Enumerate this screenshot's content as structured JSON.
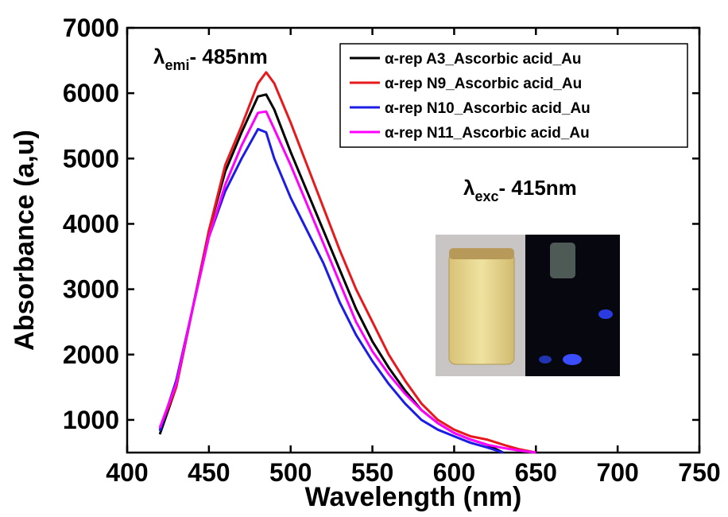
{
  "chart_data": {
    "type": "line",
    "x_label": "Wavelength (nm)",
    "y_label": "Absorbance (a,u)",
    "x": [
      420,
      430,
      440,
      450,
      460,
      470,
      480,
      485,
      490,
      500,
      510,
      520,
      530,
      540,
      550,
      560,
      570,
      580,
      590,
      600,
      610,
      620,
      630,
      640,
      650
    ],
    "series": [
      {
        "name": "α-rep A3_Ascorbic acid_Au",
        "color": "#000000",
        "values": [
          780,
          1500,
          2700,
          3900,
          4800,
          5400,
          5950,
          5980,
          5750,
          5100,
          4500,
          3900,
          3300,
          2700,
          2200,
          1800,
          1450,
          1150,
          950,
          800,
          700,
          620,
          500,
          null,
          null
        ]
      },
      {
        "name": "α-rep N9_Ascorbic acid_Au",
        "color": "#e8191c",
        "values": [
          850,
          1500,
          2700,
          3900,
          4900,
          5500,
          6150,
          6320,
          6150,
          5550,
          4900,
          4250,
          3600,
          3000,
          2500,
          2000,
          1600,
          1250,
          1000,
          850,
          750,
          700,
          620,
          550,
          500
        ]
      },
      {
        "name": "α-rep N10_Ascorbic acid_Au",
        "color": "#1c1ce6",
        "values": [
          830,
          1600,
          2700,
          3800,
          4500,
          5000,
          5450,
          5400,
          5000,
          4400,
          3900,
          3400,
          2800,
          2300,
          1900,
          1550,
          1250,
          1000,
          850,
          750,
          650,
          580,
          500,
          null,
          null
        ]
      },
      {
        "name": "α-rep N11_Ascorbic acid_Au",
        "color": "#ff00ff",
        "values": [
          880,
          1550,
          2700,
          3800,
          4600,
          5200,
          5700,
          5720,
          5450,
          4900,
          4300,
          3700,
          3100,
          2500,
          2050,
          1700,
          1400,
          1150,
          950,
          800,
          700,
          620,
          570,
          530,
          500
        ]
      }
    ],
    "xlim": [
      400,
      750
    ],
    "ylim": [
      500,
      7000
    ],
    "xticks": [
      400,
      450,
      500,
      550,
      600,
      650,
      700,
      750
    ],
    "yticks": [
      1000,
      2000,
      3000,
      4000,
      5000,
      6000,
      7000
    ],
    "legend": "upper right",
    "annotations": [
      {
        "symbol": "λ",
        "sub": "emi",
        "text": "- 485nm"
      },
      {
        "symbol": "λ",
        "sub": "exc",
        "text": "- 415nm"
      }
    ]
  }
}
